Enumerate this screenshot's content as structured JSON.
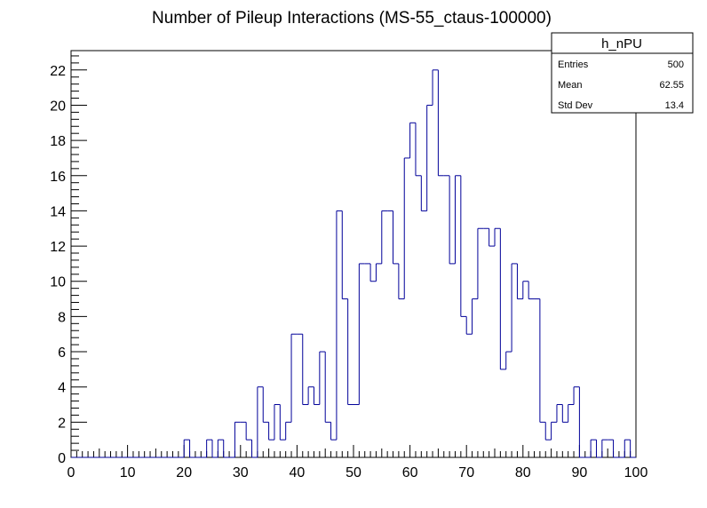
{
  "chart_data": {
    "type": "bar",
    "style": "step-histogram",
    "title": "Number of Pileup Interactions (MS-55_ctaus-100000)",
    "xlabel": "",
    "ylabel": "",
    "xlim": [
      0,
      100
    ],
    "ylim": [
      0,
      23.1
    ],
    "bin_width": 1,
    "x_ticks": [
      "0",
      "10",
      "20",
      "30",
      "40",
      "50",
      "60",
      "70",
      "80",
      "90",
      "100"
    ],
    "y_ticks": [
      "0",
      "2",
      "4",
      "6",
      "8",
      "10",
      "12",
      "14",
      "16",
      "18",
      "20",
      "22"
    ],
    "line_color": "#000099",
    "grid": false,
    "values": [
      0,
      0,
      0,
      0,
      0,
      0,
      0,
      0,
      0,
      0,
      0,
      0,
      0,
      0,
      0,
      0,
      0,
      0,
      0,
      0,
      1,
      0,
      0,
      0,
      1,
      0,
      1,
      0,
      0,
      2,
      2,
      1,
      0,
      4,
      2,
      1,
      3,
      1,
      2,
      7,
      7,
      3,
      4,
      3,
      6,
      2,
      1,
      14,
      9,
      3,
      3,
      11,
      11,
      10,
      11,
      14,
      14,
      11,
      9,
      17,
      19,
      16,
      14,
      20,
      22,
      16,
      16,
      11,
      16,
      8,
      7,
      9,
      13,
      13,
      12,
      13,
      5,
      6,
      11,
      9,
      10,
      9,
      9,
      2,
      1,
      2,
      3,
      2,
      3,
      4,
      0,
      0,
      1,
      0,
      1,
      1,
      0,
      0,
      1,
      0
    ]
  },
  "stats_box": {
    "name": "h_nPU",
    "rows": [
      {
        "label": "Entries",
        "value": "500"
      },
      {
        "label": "Mean",
        "value": "62.55"
      },
      {
        "label": "Std Dev",
        "value": "13.4"
      }
    ]
  }
}
